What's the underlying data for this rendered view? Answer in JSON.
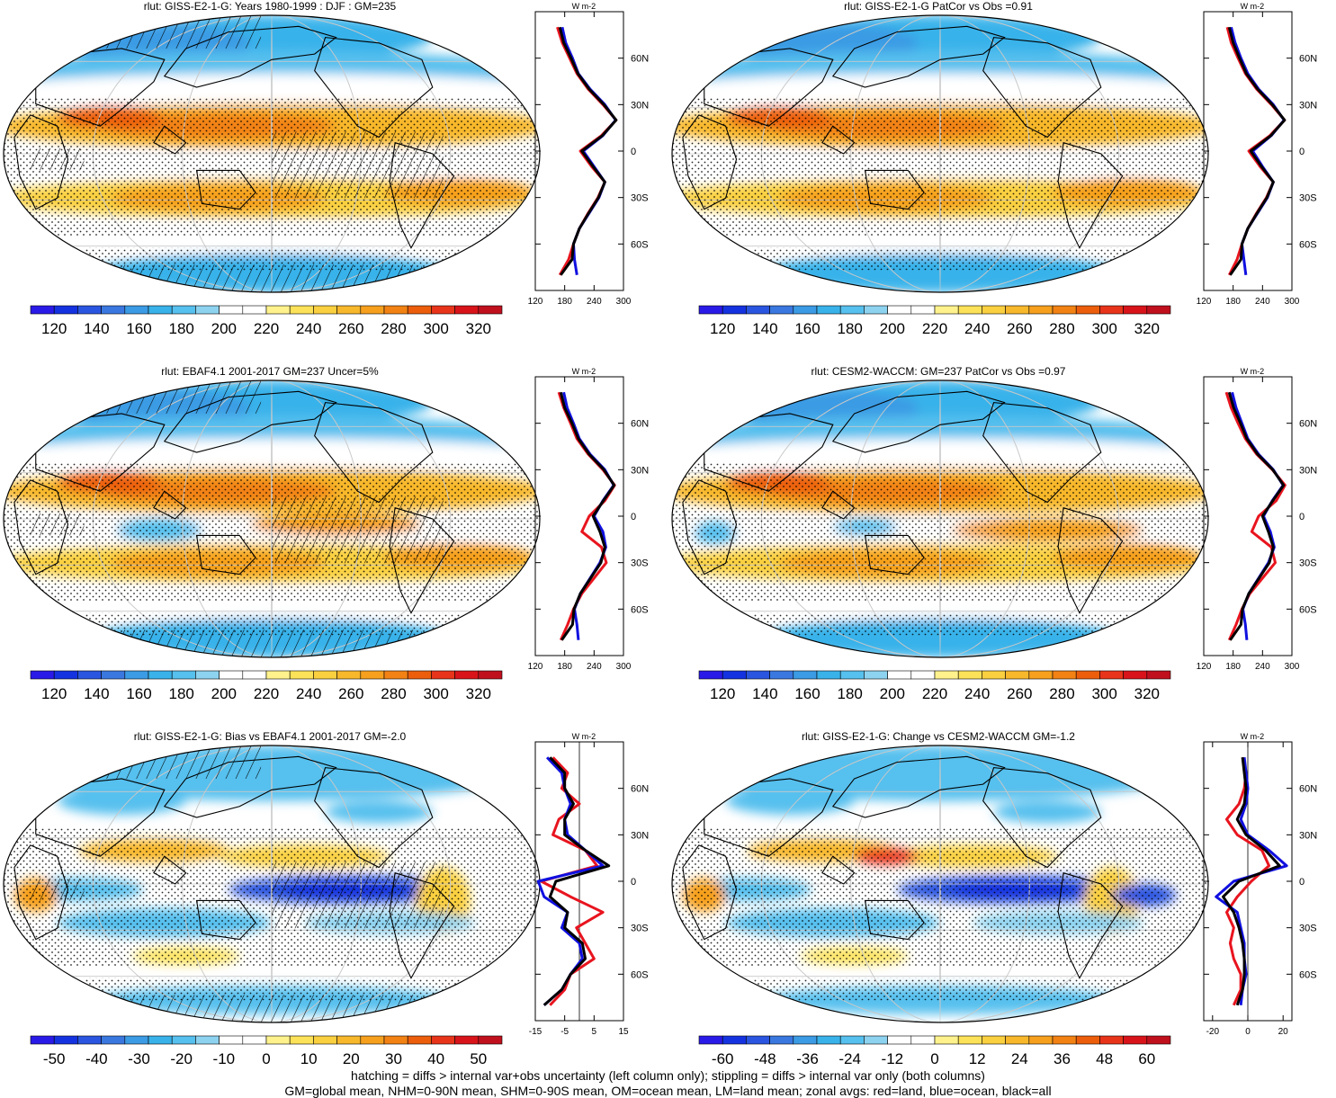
{
  "colors": {
    "red_land": "#e8141e",
    "blue_ocean": "#1010e0",
    "black_all": "#000000",
    "clim_palette": [
      "#2a1ae8",
      "#1432e0",
      "#2a55e0",
      "#3a78e0",
      "#3b9be4",
      "#39b2ea",
      "#56c0ee",
      "#8dd3f0",
      "#ffffff",
      "#ffffff",
      "#fff28c",
      "#fce258",
      "#fad040",
      "#f8b82c",
      "#f6a01e",
      "#f28214",
      "#ec5e0c",
      "#e8341a",
      "#d8141a",
      "#c0101e"
    ],
    "diff_palette": [
      "#2a1ae8",
      "#1432e0",
      "#2a55e0",
      "#3a78e0",
      "#3b9be4",
      "#39b2ea",
      "#56c0ee",
      "#8dd3f0",
      "#ffffff",
      "#ffffff",
      "#fff28c",
      "#fce258",
      "#fad040",
      "#f8b82c",
      "#f6a01e",
      "#f28214",
      "#ec5e0c",
      "#e8341a",
      "#d8141a",
      "#c0101e"
    ]
  },
  "footer": {
    "line1": "hatching = diffs > internal var+obs uncertainty (left column only); stippling = diffs > internal var only (both columns)",
    "line2": "GM=global mean, NHM=0-90N mean, SHM=0-90S mean, OM=ocean mean, LM=land mean; zonal avgs: red=land, blue=ocean, black=all"
  },
  "chart_data": [
    {
      "type": "heatmap",
      "title": "rlut: GISS-E2-1-G: Years 1980-1999 : DJF : GM=235",
      "colorbar_ticks": [
        "120",
        "140",
        "160",
        "180",
        "200",
        "220",
        "240",
        "260",
        "280",
        "300",
        "320"
      ],
      "field": "climatology",
      "hatching": true,
      "zonal_mean": {
        "units": "W m-2",
        "xticks": [
          "120",
          "180",
          "240",
          "300"
        ],
        "xlim": [
          120,
          300
        ],
        "yticks": [
          "60N",
          "30N",
          "0",
          "30S",
          "60S"
        ],
        "lat": [
          80,
          70,
          60,
          50,
          40,
          30,
          20,
          10,
          0,
          -10,
          -20,
          -30,
          -40,
          -50,
          -60,
          -70,
          -80
        ],
        "series": [
          {
            "name": "land",
            "values": [
              165,
              175,
              190,
              205,
              228,
              258,
              285,
              255,
              212,
              235,
              262,
              248,
              228,
              210,
              198,
              188,
              170
            ]
          },
          {
            "name": "ocean",
            "values": [
              175,
              182,
              196,
              208,
              232,
              262,
              284,
              258,
              218,
              240,
              262,
              250,
              230,
              210,
              198,
              200,
              205
            ]
          },
          {
            "name": "all",
            "values": [
              170,
              178,
              193,
              207,
              230,
              260,
              285,
              257,
              215,
              238,
              262,
              249,
              229,
              210,
              198,
              195,
              172
            ]
          }
        ]
      }
    },
    {
      "type": "heatmap",
      "title": "rlut: GISS-E2-1-G PatCor vs Obs =0.91",
      "colorbar_ticks": [
        "120",
        "140",
        "160",
        "180",
        "200",
        "220",
        "240",
        "260",
        "280",
        "300",
        "320"
      ],
      "field": "climatology",
      "hatching": false,
      "zonal_mean": {
        "units": "W m-2",
        "xticks": [
          "120",
          "180",
          "240",
          "300"
        ],
        "xlim": [
          120,
          300
        ],
        "yticks": [
          "60N",
          "30N",
          "0",
          "30S",
          "60S"
        ],
        "lat": [
          80,
          70,
          60,
          50,
          40,
          30,
          20,
          10,
          0,
          -10,
          -20,
          -30,
          -40,
          -50,
          -60,
          -70,
          -80
        ],
        "series": [
          {
            "name": "land",
            "values": [
              168,
              176,
              190,
              205,
              228,
              258,
              285,
              255,
              212,
              235,
              262,
              248,
              228,
              210,
              198,
              188,
              172
            ]
          },
          {
            "name": "ocean",
            "values": [
              176,
              184,
              196,
              210,
              232,
              262,
              284,
              258,
              220,
              240,
              262,
              250,
              230,
              210,
              198,
              202,
              206
            ]
          },
          {
            "name": "all",
            "values": [
              172,
              180,
              193,
              207,
              230,
              260,
              285,
              257,
              216,
              238,
              262,
              249,
              229,
              210,
              198,
              196,
              174
            ]
          }
        ]
      }
    },
    {
      "type": "heatmap",
      "title": "rlut: EBAF4.1 2001-2017 GM=237 Uncer=5%",
      "colorbar_ticks": [
        "120",
        "140",
        "160",
        "180",
        "200",
        "220",
        "240",
        "260",
        "280",
        "300",
        "320"
      ],
      "field": "climatology",
      "hatching": true,
      "zonal_mean": {
        "units": "W m-2",
        "xticks": [
          "120",
          "180",
          "240",
          "300"
        ],
        "xlim": [
          120,
          300
        ],
        "yticks": [
          "60N",
          "30N",
          "0",
          "30S",
          "60S"
        ],
        "lat": [
          80,
          70,
          60,
          50,
          40,
          30,
          20,
          10,
          0,
          -10,
          -20,
          -30,
          -40,
          -50,
          -60,
          -70,
          -80
        ],
        "series": [
          {
            "name": "land",
            "values": [
              168,
              178,
              192,
              205,
              228,
              258,
              282,
              262,
              230,
              215,
              255,
              265,
              240,
              215,
              198,
              186,
              172
            ]
          },
          {
            "name": "ocean",
            "values": [
              178,
              185,
              198,
              210,
              232,
              262,
              280,
              258,
              240,
              258,
              264,
              252,
              232,
              212,
              200,
              205,
              208
            ]
          },
          {
            "name": "all",
            "values": [
              172,
              180,
              195,
              208,
              230,
              260,
              281,
              259,
              238,
              252,
              262,
              254,
              233,
              212,
              199,
              196,
              174
            ]
          }
        ]
      }
    },
    {
      "type": "heatmap",
      "title": "rlut: CESM2-WACCM: GM=237 PatCor vs Obs =0.97",
      "colorbar_ticks": [
        "120",
        "140",
        "160",
        "180",
        "200",
        "220",
        "240",
        "260",
        "280",
        "300",
        "320"
      ],
      "field": "climatology",
      "hatching": false,
      "zonal_mean": {
        "units": "W m-2",
        "xticks": [
          "120",
          "180",
          "240",
          "300"
        ],
        "xlim": [
          120,
          300
        ],
        "yticks": [
          "60N",
          "30N",
          "0",
          "30S",
          "60S"
        ],
        "lat": [
          80,
          70,
          60,
          50,
          40,
          30,
          20,
          10,
          0,
          -10,
          -20,
          -30,
          -40,
          -50,
          -60,
          -70,
          -80
        ],
        "series": [
          {
            "name": "land",
            "values": [
              166,
              176,
              190,
              205,
              228,
              260,
              286,
              268,
              232,
              218,
              258,
              266,
              240,
              214,
              198,
              186,
              172
            ]
          },
          {
            "name": "ocean",
            "values": [
              178,
              186,
              198,
              210,
              232,
              262,
              282,
              260,
              242,
              256,
              264,
              252,
              232,
              212,
              200,
              205,
              208
            ]
          },
          {
            "name": "all",
            "values": [
              172,
              181,
              195,
              208,
              230,
              261,
              283,
              261,
              240,
              252,
              262,
              254,
              233,
              212,
              199,
              196,
              174
            ]
          }
        ]
      }
    },
    {
      "type": "heatmap",
      "title": "rlut: GISS-E2-1-G: Bias vs EBAF4.1 2001-2017 GM=-2.0",
      "colorbar_ticks": [
        "-50",
        "-40",
        "-30",
        "-20",
        "-10",
        "0",
        "10",
        "20",
        "30",
        "40",
        "50"
      ],
      "field": "bias",
      "hatching": true,
      "zonal_mean": {
        "units": "W m-2",
        "xticks": [
          "-15",
          "-5",
          "5",
          "15"
        ],
        "xlim": [
          -15,
          15
        ],
        "yticks": [
          "60N",
          "30N",
          "0",
          "30S",
          "60S"
        ],
        "lat": [
          80,
          70,
          60,
          50,
          40,
          30,
          20,
          10,
          0,
          -10,
          -20,
          -30,
          -40,
          -50,
          -60,
          -70,
          -80
        ],
        "series": [
          {
            "name": "land",
            "values": [
              -9,
              -4,
              -6,
              0,
              -7,
              -9,
              2,
              6,
              -13,
              -3,
              8,
              -1,
              2,
              5,
              -3,
              -5,
              -10
            ]
          },
          {
            "name": "ocean",
            "values": [
              -11,
              -6,
              -5,
              -3,
              -5,
              -4,
              2,
              8,
              -14,
              -12,
              -4,
              -6,
              0,
              1,
              -3,
              -6,
              -12
            ]
          },
          {
            "name": "all",
            "values": [
              -10,
              -5,
              -5,
              -2,
              -5,
              -5,
              2,
              10,
              -8,
              -10,
              -4,
              -5,
              1,
              2,
              -3,
              -6,
              -12
            ]
          }
        ]
      }
    },
    {
      "type": "heatmap",
      "title": "rlut: GISS-E2-1-G: Change vs CESM2-WACCM GM=-1.2",
      "colorbar_ticks": [
        "-60",
        "-48",
        "-36",
        "-24",
        "-12",
        "0",
        "12",
        "24",
        "36",
        "48",
        "60"
      ],
      "field": "change",
      "hatching": false,
      "zonal_mean": {
        "units": "W m-2",
        "xticks": [
          "-20",
          "0",
          "20"
        ],
        "xlim": [
          -25,
          25
        ],
        "yticks": [
          "60N",
          "30N",
          "0",
          "30S",
          "60S"
        ],
        "lat": [
          80,
          70,
          60,
          50,
          40,
          30,
          20,
          10,
          0,
          -10,
          -20,
          -30,
          -40,
          -50,
          -60,
          -70,
          -80
        ],
        "series": [
          {
            "name": "land",
            "values": [
              -3,
              -1,
              -2,
              -5,
              -12,
              -6,
              8,
              12,
              2,
              -6,
              -12,
              -8,
              -10,
              -8,
              -4,
              -4,
              -8
            ]
          },
          {
            "name": "ocean",
            "values": [
              -2,
              -1,
              0,
              -1,
              -4,
              0,
              12,
              22,
              -8,
              -18,
              -6,
              -4,
              -2,
              -2,
              -1,
              -3,
              -4
            ]
          },
          {
            "name": "all",
            "values": [
              -3,
              -2,
              -1,
              -2,
              -6,
              -1,
              10,
              18,
              -5,
              -14,
              -8,
              -5,
              -3,
              -2,
              -2,
              -3,
              -6
            ]
          }
        ]
      }
    }
  ]
}
